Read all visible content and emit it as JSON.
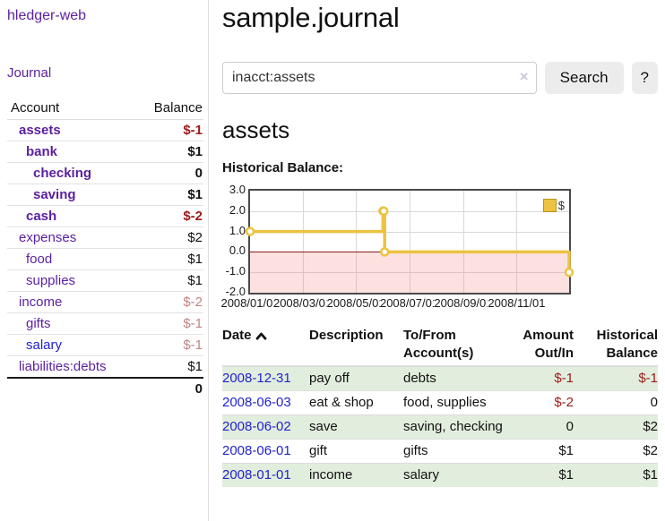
{
  "sidebar": {
    "brand": "hledger-web",
    "nav": [
      {
        "label": "Journal"
      }
    ],
    "accounts_table": {
      "headers": {
        "account": "Account",
        "balance": "Balance"
      },
      "rows": [
        {
          "account": "assets",
          "balance": "$-1",
          "level": 1,
          "bold": true,
          "balance_class": "neg-strong"
        },
        {
          "account": "bank",
          "balance": "$1",
          "level": 2,
          "bold": true,
          "balance_class": ""
        },
        {
          "account": "checking",
          "balance": "0",
          "level": 3,
          "bold": true,
          "balance_class": ""
        },
        {
          "account": "saving",
          "balance": "$1",
          "level": 3,
          "bold": true,
          "balance_class": ""
        },
        {
          "account": "cash",
          "balance": "$-2",
          "level": 2,
          "bold": true,
          "balance_class": "neg-strong"
        },
        {
          "account": "expenses",
          "balance": "$2",
          "level": 1,
          "bold": false,
          "balance_class": ""
        },
        {
          "account": "food",
          "balance": "$1",
          "level": 2,
          "bold": false,
          "balance_class": ""
        },
        {
          "account": "supplies",
          "balance": "$1",
          "level": 2,
          "bold": false,
          "balance_class": ""
        },
        {
          "account": "income",
          "balance": "$-2",
          "level": 1,
          "bold": false,
          "balance_class": "neg-muted"
        },
        {
          "account": "gifts",
          "balance": "$-1",
          "level": 2,
          "bold": false,
          "balance_class": "neg-muted"
        },
        {
          "account": "salary",
          "balance": "$-1",
          "level": 2,
          "bold": false,
          "balance_class": "neg-muted",
          "link_class": "blue"
        },
        {
          "account": "liabilities:debts",
          "balance": "$1",
          "level": 1,
          "bold": false,
          "balance_class": ""
        }
      ],
      "total": "0"
    }
  },
  "header": {
    "title": "sample.journal"
  },
  "search": {
    "value": "inacct:assets",
    "clear_icon": "×",
    "search_label": "Search",
    "help_label": "?"
  },
  "account_page": {
    "title": "assets",
    "chart_label": "Historical Balance:"
  },
  "chart_data": {
    "type": "line",
    "steps": true,
    "series": [
      {
        "name": "$",
        "color": "#edc240",
        "points": [
          [
            "2008-01-01",
            1
          ],
          [
            "2008-06-01",
            2
          ],
          [
            "2008-06-02",
            2
          ],
          [
            "2008-06-03",
            0
          ],
          [
            "2008-12-31",
            -1
          ]
        ]
      }
    ],
    "x_ticks": [
      "2008/01/01",
      "2008/03/01",
      "2008/05/01",
      "2008/07/01",
      "2008/09/01",
      "2008/11/01"
    ],
    "y_ticks": [
      3.0,
      2.0,
      1.0,
      0.0,
      -1.0,
      -2.0
    ],
    "ylim": [
      -2,
      3
    ],
    "xlim_dates": [
      "2008-01-01",
      "2008-12-31"
    ],
    "grid": true,
    "legend_position": "top-right",
    "legend_label": "$",
    "negative_region_color": "#fce1e1",
    "zero_line_color": "#8b1a1a"
  },
  "register": {
    "headers": {
      "date": "Date",
      "description": "Description",
      "accounts": "To/From Account(s)",
      "amount": "Amount Out/In",
      "balance": "Historical Balance"
    },
    "sort": {
      "column": "date",
      "direction": "ascending"
    },
    "rows": [
      {
        "date": "2008-12-31",
        "description": "pay off",
        "accounts": "debts",
        "amount": "$-1",
        "amount_class": "neg",
        "balance": "$-1",
        "balance_class": "neg",
        "striped": true
      },
      {
        "date": "2008-06-03",
        "description": "eat & shop",
        "accounts": "food, supplies",
        "amount": "$-2",
        "amount_class": "neg",
        "balance": "0",
        "balance_class": "",
        "striped": false
      },
      {
        "date": "2008-06-02",
        "description": "save",
        "accounts": "saving, checking",
        "amount": "0",
        "amount_class": "",
        "balance": "$2",
        "balance_class": "",
        "striped": true
      },
      {
        "date": "2008-06-01",
        "description": "gift",
        "accounts": "gifts",
        "amount": "$1",
        "amount_class": "",
        "balance": "$2",
        "balance_class": "",
        "striped": false
      },
      {
        "date": "2008-01-01",
        "description": "income",
        "accounts": "salary",
        "amount": "$1",
        "amount_class": "",
        "balance": "$1",
        "balance_class": "",
        "striped": true
      }
    ]
  },
  "colors": {
    "link_purple": "#5a1fa0",
    "link_blue": "#2222cf",
    "negative_strong": "#9e1a1a",
    "negative_muted": "#c08484",
    "row_stripe_green": "#e2eedd",
    "chart_line_gold": "#edc240",
    "chart_border": "#4a4a4a",
    "button_gray": "#ececec"
  }
}
